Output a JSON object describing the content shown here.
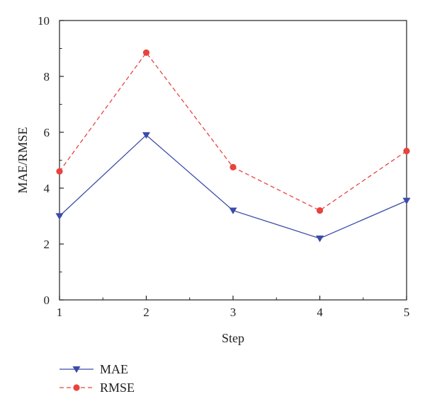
{
  "chart_data": {
    "type": "line",
    "title": "",
    "xlabel": "Step",
    "ylabel": "MAE/RMSE",
    "x": [
      1,
      2,
      3,
      4,
      5
    ],
    "xlim": [
      1,
      5
    ],
    "ylim": [
      0,
      10
    ],
    "xticks": [
      "1",
      "2",
      "3",
      "4",
      "5"
    ],
    "yticks": [
      "0",
      "2",
      "4",
      "6",
      "8",
      "10"
    ],
    "grid": false,
    "legend_position": "bottom-left",
    "series": [
      {
        "name": "MAE",
        "values": [
          3.0,
          5.9,
          3.2,
          2.2,
          3.55
        ],
        "color": "#3b4ba8",
        "line_style": "solid",
        "marker": "triangle-down"
      },
      {
        "name": "RMSE",
        "values": [
          4.6,
          8.85,
          4.75,
          3.2,
          5.33
        ],
        "color": "#e8433f",
        "line_style": "dashed",
        "marker": "circle"
      }
    ]
  }
}
